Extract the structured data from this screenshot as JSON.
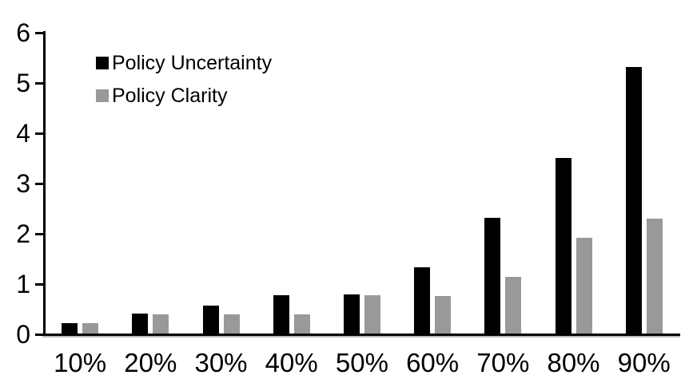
{
  "chart_data": {
    "type": "bar",
    "title": "",
    "xlabel": "",
    "ylabel": "",
    "categories": [
      "10%",
      "20%",
      "30%",
      "40%",
      "50%",
      "60%",
      "70%",
      "80%",
      "90%"
    ],
    "series": [
      {
        "name": "Policy Uncertainty",
        "color": "#000000",
        "values": [
          0.2,
          0.4,
          0.55,
          0.76,
          0.78,
          1.32,
          2.3,
          3.5,
          5.3
        ]
      },
      {
        "name": "Policy Clarity",
        "color": "#999999",
        "values": [
          0.2,
          0.38,
          0.38,
          0.38,
          0.76,
          0.75,
          1.13,
          1.9,
          2.28
        ]
      }
    ],
    "ylim": [
      0,
      6
    ],
    "yticks": [
      0,
      1,
      2,
      3,
      4,
      5,
      6
    ],
    "grid": false,
    "legend_position": "top-left-inside",
    "axis_color": "#000000",
    "background_color": "#ffffff"
  }
}
